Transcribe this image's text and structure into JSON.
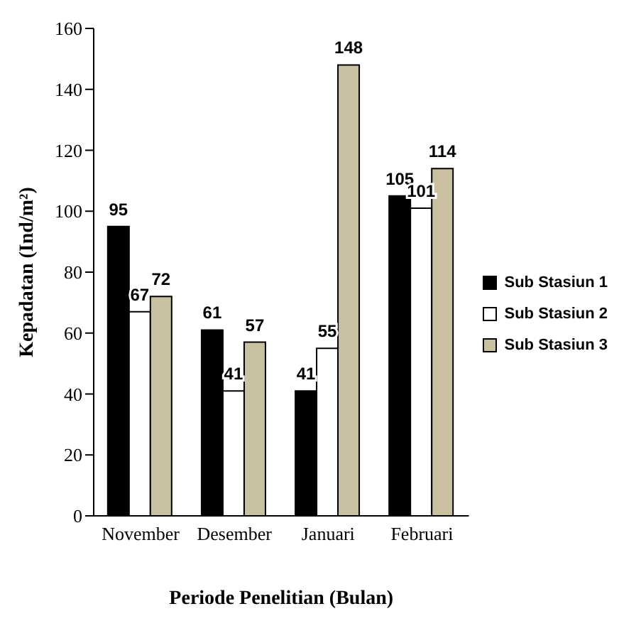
{
  "chart_data": {
    "type": "bar",
    "xlabel": "Periode Penelitian (Bulan)",
    "ylabel": "Kepadatan (Ind/m²)",
    "categories": [
      "November",
      "Desember",
      "Januari",
      "Februari"
    ],
    "series": [
      {
        "name": "Sub Stasiun 1",
        "color": "#000000",
        "values": [
          95,
          61,
          41,
          105
        ]
      },
      {
        "name": "Sub Stasiun 2",
        "color": "#ffffff",
        "values": [
          67,
          41,
          55,
          101
        ]
      },
      {
        "name": "Sub Stasiun 3",
        "color": "#c9c0a0",
        "values": [
          72,
          57,
          148,
          114
        ]
      }
    ],
    "ylim": [
      0,
      160
    ],
    "yticks": [
      0,
      20,
      40,
      60,
      80,
      100,
      120,
      140,
      160
    ],
    "legend": "right",
    "data_labels": true
  }
}
